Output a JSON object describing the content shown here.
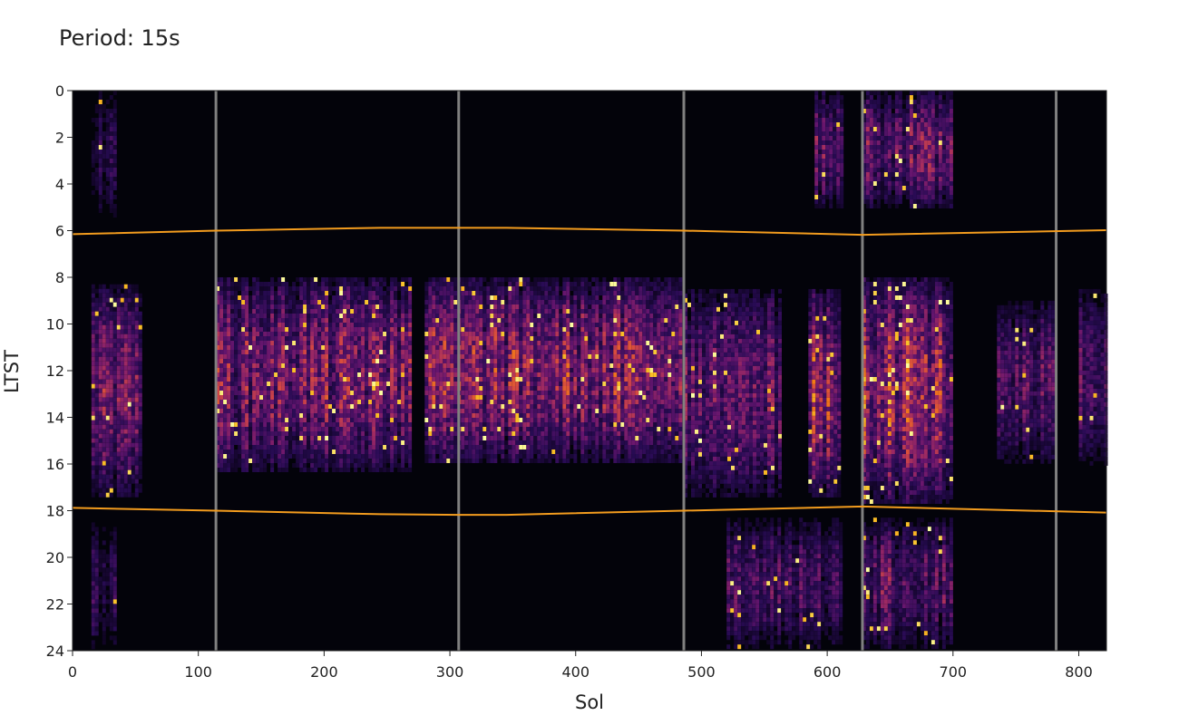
{
  "chart_data": {
    "type": "heatmap",
    "title": "Period: 15s",
    "xlabel": "Sol",
    "ylabel": "LTST",
    "xlim": [
      0,
      822
    ],
    "ylim": [
      24,
      0
    ],
    "x_ticks": [
      "0",
      "100",
      "200",
      "300",
      "400",
      "500",
      "600",
      "700",
      "800"
    ],
    "y_ticks": [
      "0",
      "2",
      "4",
      "6",
      "8",
      "10",
      "12",
      "14",
      "16",
      "18",
      "20",
      "22",
      "24"
    ],
    "colormap": "inferno",
    "background_color": "#03030a",
    "season_boundaries_sol": [
      114,
      307,
      486,
      628,
      782
    ],
    "boundary_color": "#808080",
    "sunrise_sunset_color": "#f39c1e",
    "sunrise_ltst": {
      "sol": [
        0,
        114,
        245,
        307,
        345,
        486,
        628,
        822
      ],
      "ltst": [
        6.15,
        6.0,
        5.88,
        5.88,
        5.88,
        6.0,
        6.18,
        5.98
      ]
    },
    "sunset_ltst": {
      "sol": [
        0,
        114,
        245,
        307,
        345,
        486,
        628,
        822
      ],
      "ltst": [
        17.88,
        18.0,
        18.15,
        18.18,
        18.18,
        18.0,
        17.82,
        18.08
      ]
    },
    "activity_segments": [
      {
        "sol": [
          15,
          55
        ],
        "ltst": [
          8.3,
          17.5
        ],
        "intensity": 0.62
      },
      {
        "sol": [
          15,
          35
        ],
        "ltst": [
          0,
          5.5
        ],
        "intensity": 0.28
      },
      {
        "sol": [
          15,
          35
        ],
        "ltst": [
          18.5,
          24
        ],
        "intensity": 0.32
      },
      {
        "sol": [
          114,
          270
        ],
        "ltst": [
          8.0,
          16.3
        ],
        "intensity": 0.72
      },
      {
        "sol": [
          280,
          486
        ],
        "ltst": [
          8.0,
          16.0
        ],
        "intensity": 0.78
      },
      {
        "sol": [
          486,
          565
        ],
        "ltst": [
          8.5,
          17.5
        ],
        "intensity": 0.58
      },
      {
        "sol": [
          585,
          612
        ],
        "ltst": [
          8.5,
          17.5
        ],
        "intensity": 0.9
      },
      {
        "sol": [
          520,
          612
        ],
        "ltst": [
          18.3,
          24
        ],
        "intensity": 0.45
      },
      {
        "sol": [
          590,
          612
        ],
        "ltst": [
          0,
          5.0
        ],
        "intensity": 0.55
      },
      {
        "sol": [
          628,
          700
        ],
        "ltst": [
          8.0,
          17.8
        ],
        "intensity": 0.92
      },
      {
        "sol": [
          628,
          700
        ],
        "ltst": [
          0,
          5.0
        ],
        "intensity": 0.6
      },
      {
        "sol": [
          628,
          700
        ],
        "ltst": [
          18.3,
          24
        ],
        "intensity": 0.55
      },
      {
        "sol": [
          735,
          782
        ],
        "ltst": [
          9.0,
          16.0
        ],
        "intensity": 0.5
      },
      {
        "sol": [
          800,
          822
        ],
        "ltst": [
          8.5,
          16.0
        ],
        "intensity": 0.5
      }
    ]
  }
}
